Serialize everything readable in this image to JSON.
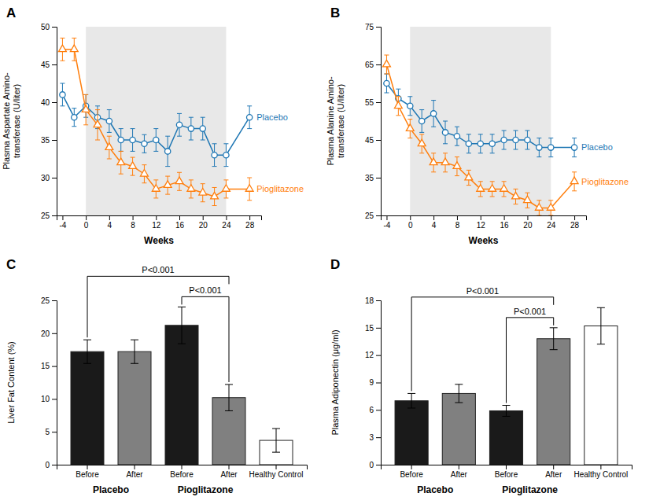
{
  "chart_data": [
    {
      "type": "line",
      "title": "A",
      "xlabel": "Weeks",
      "ylabel": "Plasma Aspartate Amino-\ntransferase (U/liter)",
      "x": [
        -4,
        -2,
        0,
        2,
        4,
        6,
        8,
        10,
        12,
        14,
        16,
        18,
        20,
        22,
        24,
        28
      ],
      "xlim": [
        -5,
        30
      ],
      "xticks": [
        -4,
        0,
        4,
        8,
        12,
        16,
        20,
        24,
        28
      ],
      "ylim": [
        25,
        50
      ],
      "yticks": [
        25,
        30,
        35,
        40,
        45,
        50
      ],
      "shaded_region": {
        "x": [
          0,
          24
        ],
        "color": "#e8e8e8"
      },
      "series": [
        {
          "name": "Placebo",
          "marker": "circle",
          "values": [
            41.0,
            38.0,
            39.5,
            38.0,
            37.5,
            35.0,
            35.0,
            34.5,
            35.0,
            33.5,
            37.0,
            36.5,
            36.5,
            33.0,
            33.0,
            38.0
          ],
          "errors": [
            1.5,
            1.2,
            1.5,
            1.5,
            1.5,
            1.5,
            1.5,
            1.2,
            1.5,
            2.0,
            1.5,
            1.5,
            1.5,
            1.5,
            1.5,
            1.5
          ]
        },
        {
          "name": "Pioglitazone",
          "marker": "triangle",
          "values": [
            47.0,
            47.0,
            39.0,
            37.0,
            34.0,
            32.0,
            31.5,
            30.5,
            28.5,
            29.0,
            29.5,
            28.5,
            28.0,
            27.5,
            28.5,
            28.5
          ],
          "errors": [
            1.5,
            1.5,
            2.0,
            2.0,
            1.5,
            1.5,
            1.2,
            1.2,
            1.2,
            1.2,
            1.2,
            1.2,
            1.2,
            1.2,
            1.2,
            1.5
          ]
        }
      ]
    },
    {
      "type": "line",
      "title": "B",
      "xlabel": "Weeks",
      "ylabel": "Plasma Alanine Amino-\ntransferase (U/liter)",
      "x": [
        -4,
        -2,
        0,
        2,
        4,
        6,
        8,
        10,
        12,
        14,
        16,
        18,
        20,
        22,
        24,
        28
      ],
      "xlim": [
        -5,
        30
      ],
      "xticks": [
        -4,
        0,
        4,
        8,
        12,
        16,
        20,
        24,
        28
      ],
      "ylim": [
        25,
        75
      ],
      "yticks": [
        25,
        35,
        45,
        55,
        65,
        75
      ],
      "shaded_region": {
        "x": [
          0,
          24
        ],
        "color": "#e8e8e8"
      },
      "series": [
        {
          "name": "Placebo",
          "marker": "circle",
          "values": [
            60.0,
            56.0,
            54.0,
            50.0,
            52.0,
            47.0,
            46.0,
            44.0,
            44.0,
            44.0,
            45.0,
            45.0,
            45.0,
            43.0,
            43.0,
            43.0
          ],
          "errors": [
            2.5,
            2.5,
            2.5,
            3.0,
            3.5,
            3.0,
            2.5,
            2.5,
            2.5,
            2.5,
            2.5,
            2.5,
            2.5,
            2.5,
            2.5,
            2.5
          ]
        },
        {
          "name": "Pioglitazone",
          "marker": "triangle",
          "values": [
            65.0,
            54.0,
            48.0,
            44.0,
            39.0,
            39.0,
            38.0,
            35.0,
            32.0,
            32.0,
            32.0,
            30.0,
            29.0,
            27.0,
            27.0,
            34.0
          ],
          "errors": [
            2.5,
            2.5,
            2.5,
            2.5,
            2.5,
            2.5,
            2.5,
            2.0,
            2.0,
            2.0,
            2.0,
            2.0,
            2.0,
            2.0,
            2.0,
            2.5
          ]
        }
      ]
    },
    {
      "type": "bar",
      "title": "C",
      "ylabel": "Liver Fat Content (%)",
      "categories": [
        "Before",
        "After",
        "Before",
        "After",
        "Healthy Control"
      ],
      "groups": [
        "Placebo",
        "Placebo",
        "Pioglitazone",
        "Pioglitazone",
        null
      ],
      "values": [
        17.2,
        17.2,
        21.2,
        10.2,
        3.7
      ],
      "errors": [
        1.8,
        1.8,
        2.8,
        2.0,
        1.8
      ],
      "colors": [
        "#1a1a1a",
        "#808080",
        "#1a1a1a",
        "#808080",
        "#ffffff"
      ],
      "ylim": [
        0,
        25
      ],
      "yticks": [
        0,
        5,
        10,
        15,
        20,
        25
      ],
      "annotations": [
        {
          "text": "P<0.001",
          "between": [
            2,
            3
          ]
        },
        {
          "text": "P<0.001",
          "between": [
            0,
            3
          ]
        }
      ]
    },
    {
      "type": "bar",
      "title": "D",
      "ylabel": "Plasma Adiponectin (μg/ml)",
      "categories": [
        "Before",
        "After",
        "Before",
        "After",
        "Healthy Control"
      ],
      "groups": [
        "Placebo",
        "Placebo",
        "Pioglitazone",
        "Pioglitazone",
        null
      ],
      "values": [
        7.0,
        7.8,
        5.9,
        13.8,
        15.2
      ],
      "errors": [
        0.8,
        1.0,
        0.6,
        1.2,
        2.0
      ],
      "colors": [
        "#1a1a1a",
        "#808080",
        "#1a1a1a",
        "#808080",
        "#ffffff"
      ],
      "ylim": [
        0,
        18
      ],
      "yticks": [
        0,
        3,
        6,
        9,
        12,
        15,
        18
      ],
      "annotations": [
        {
          "text": "P<0.001",
          "between": [
            2,
            3
          ]
        },
        {
          "text": "P<0.001",
          "between": [
            0,
            3
          ]
        }
      ]
    }
  ]
}
